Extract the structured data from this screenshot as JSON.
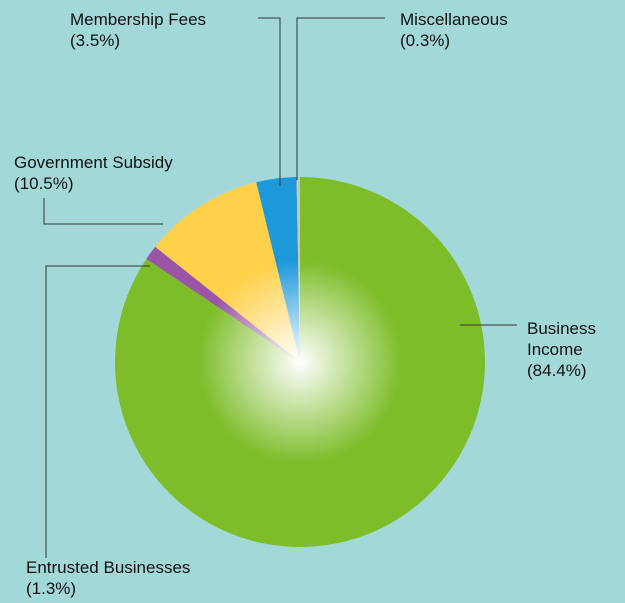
{
  "chart_data": {
    "type": "pie",
    "categories": [
      "Business Income",
      "Entrusted Businesses",
      "Government Subsidy",
      "Membership Fees",
      "Miscellaneous"
    ],
    "values": [
      84.4,
      1.3,
      10.5,
      3.5,
      0.3
    ],
    "value_labels": [
      "(84.4%)",
      "(1.3%)",
      "(10.5%)",
      "(3.5%)",
      "(0.3%)"
    ],
    "colors": [
      "#7dbd2a",
      "#9c54a6",
      "#ffd04a",
      "#1d98d8",
      "#c9c9bb"
    ]
  }
}
